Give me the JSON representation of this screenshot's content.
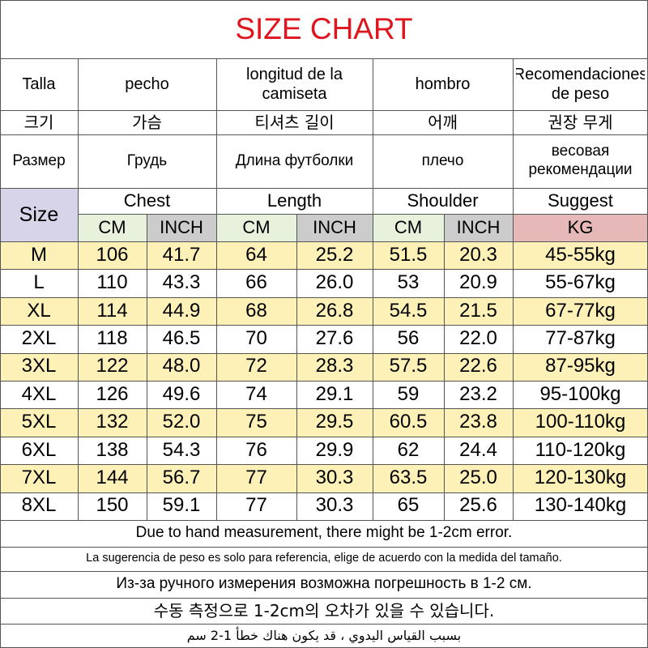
{
  "title": "SIZE CHART",
  "colors": {
    "title": "#e0141d",
    "size_header_bg": "#d7d3e8",
    "cm_bg": "#e8f1dc",
    "inch_bg": "#cccccc",
    "kg_bg": "#e6b8b8",
    "highlight_row_bg": "#fdf1b8",
    "grid_line": "#555555"
  },
  "header_rows": [
    [
      "Talla",
      "pecho",
      "longitud de la camiseta",
      "hombro",
      "Recomendaciones de peso"
    ],
    [
      "크기",
      "가슴",
      "티셔츠 길이",
      "어깨",
      "권장 무게"
    ],
    [
      "Размер",
      "Грудь",
      "Длина футболки",
      "плечо",
      "весовая рекомендации"
    ]
  ],
  "size_label": "Size",
  "group_headers": [
    "Chest",
    "Length",
    "Shoulder",
    "Suggest"
  ],
  "unit_headers": [
    "CM",
    "INCH",
    "CM",
    "INCH",
    "CM",
    "INCH",
    "KG"
  ],
  "rows": [
    [
      "M",
      "106",
      "41.7",
      "64",
      "25.2",
      "51.5",
      "20.3",
      "45-55kg"
    ],
    [
      "L",
      "110",
      "43.3",
      "66",
      "26.0",
      "53",
      "20.9",
      "55-67kg"
    ],
    [
      "XL",
      "114",
      "44.9",
      "68",
      "26.8",
      "54.5",
      "21.5",
      "67-77kg"
    ],
    [
      "2XL",
      "118",
      "46.5",
      "70",
      "27.6",
      "56",
      "22.0",
      "77-87kg"
    ],
    [
      "3XL",
      "122",
      "48.0",
      "72",
      "28.3",
      "57.5",
      "22.6",
      "87-95kg"
    ],
    [
      "4XL",
      "126",
      "49.6",
      "74",
      "29.1",
      "59",
      "23.2",
      "95-100kg"
    ],
    [
      "5XL",
      "132",
      "52.0",
      "75",
      "29.5",
      "60.5",
      "23.8",
      "100-110kg"
    ],
    [
      "6XL",
      "138",
      "54.3",
      "76",
      "29.9",
      "62",
      "24.4",
      "110-120kg"
    ],
    [
      "7XL",
      "144",
      "56.7",
      "77",
      "30.3",
      "63.5",
      "25.0",
      "120-130kg"
    ],
    [
      "8XL",
      "150",
      "59.1",
      "77",
      "30.3",
      "65",
      "25.6",
      "130-140kg"
    ]
  ],
  "notes": [
    "Due to hand measurement, there might be 1-2cm error.",
    "La sugerencia de peso es solo para referencia, elige de acuerdo con la medida del tamaño.",
    "Из-за ручного измерения возможна погрешность в 1-2 см.",
    "수동 측정으로 1-2cm의 오차가 있을 수 있습니다.",
    "بسبب القياس اليدوي ، قد يكون هناك خطأ 1-2 سم"
  ]
}
